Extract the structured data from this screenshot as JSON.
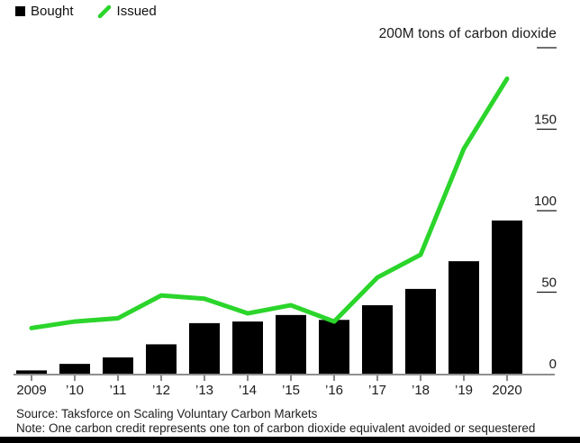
{
  "legend": {
    "items": [
      {
        "label": "Bought",
        "swatch": "square",
        "color": "#000000"
      },
      {
        "label": "Issued",
        "swatch": "line",
        "color": "#2bd52b"
      }
    ]
  },
  "axis_title": "200M tons of carbon dioxide",
  "footer": {
    "source": "Source: Taksforce on Scaling Voluntary Carbon Markets",
    "note": "Note: One carbon credit represents one ton of carbon dioxide equivalent avoided or sequestered"
  },
  "chart_data": {
    "type": "bar",
    "title": "200M tons of carbon dioxide",
    "categories": [
      "2009",
      "’10",
      "’11",
      "’12",
      "’13",
      "’14",
      "’15",
      "’16",
      "’17",
      "’18",
      "’19",
      "2020"
    ],
    "series": [
      {
        "name": "Bought",
        "type": "bar",
        "color": "#000000",
        "values": [
          2,
          6,
          10,
          18,
          31,
          32,
          36,
          33,
          42,
          52,
          69,
          94
        ]
      },
      {
        "name": "Issued",
        "type": "line",
        "color": "#2bd52b",
        "values": [
          28,
          32,
          34,
          48,
          46,
          37,
          42,
          32,
          59,
          73,
          138,
          181
        ]
      }
    ],
    "xlabel": "",
    "ylabel": "M tons of carbon dioxide",
    "ylim": [
      0,
      200
    ],
    "yticks": [
      0,
      50,
      100,
      150,
      200
    ],
    "ytick_labels_shown": [
      "0",
      "50",
      "100",
      "150"
    ],
    "legend_position": "top-left",
    "grid": false,
    "axis_side": "right"
  },
  "colors": {
    "bar": "#000000",
    "line": "#2bd52b",
    "baseline": "#8f8f8f",
    "tick": "#1a1a1a",
    "text": "#1a1a1a",
    "background": "#ffffff"
  }
}
